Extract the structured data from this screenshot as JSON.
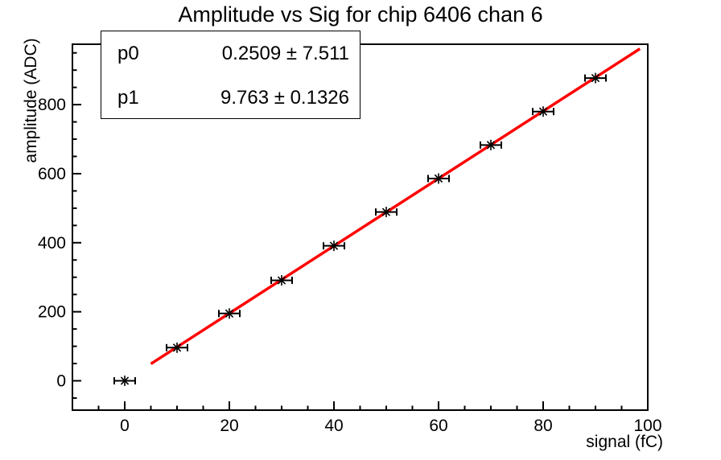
{
  "title": "Amplitude vs Sig for chip 6406 chan 6",
  "stats": {
    "rows": [
      {
        "name": "p0",
        "value": "0.2509 ± 7.511"
      },
      {
        "name": "p1",
        "value": "9.763 ± 0.1326"
      }
    ]
  },
  "chart_data": {
    "type": "scatter",
    "title": "Amplitude vs Sig for chip 6406 chan 6",
    "xlabel": "signal (fC)",
    "ylabel": "amplitude (ADC)",
    "x": [
      0,
      10,
      20,
      30,
      40,
      50,
      60,
      70,
      80,
      90
    ],
    "y": [
      0,
      96,
      195,
      291,
      391,
      489,
      586,
      683,
      780,
      877
    ],
    "xerr": 2,
    "xlim": [
      -10,
      100
    ],
    "ylim": [
      -85,
      975
    ],
    "xticks": [
      0,
      20,
      40,
      60,
      80,
      100
    ],
    "yticks": [
      0,
      200,
      400,
      600,
      800
    ],
    "x_minor_step": 5,
    "y_minor_step": 50,
    "grid": false,
    "legend": "none",
    "marker": "asterisk",
    "marker_color": "#000000",
    "axis_color": "#000000",
    "fit": {
      "type": "linear",
      "p0": 0.2509,
      "p0_err": 7.511,
      "p1": 9.763,
      "p1_err": 0.1326,
      "draw_range": [
        5,
        98.5
      ],
      "color": "#ff0000"
    }
  }
}
